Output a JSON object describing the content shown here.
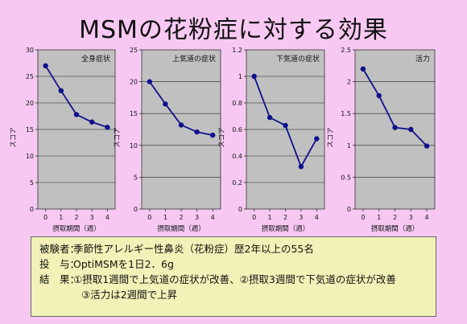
{
  "title": "MSMの花粉症に対する効果",
  "chart_data": [
    {
      "type": "line",
      "title": "全身症状",
      "xlabel": "摂取期間（週）",
      "ylabel": "スコア",
      "x": [
        0,
        1,
        2,
        3,
        4
      ],
      "values": [
        27,
        22.3,
        17.8,
        16.4,
        15.4
      ],
      "ylim": [
        0,
        30
      ],
      "yticks": [
        0,
        5,
        10,
        15,
        20,
        25,
        30
      ],
      "ytick_labels": [
        "0",
        "5",
        "10",
        "15",
        "20",
        "25",
        "30"
      ],
      "grid": true,
      "line_color": "#10108c"
    },
    {
      "type": "line",
      "title": "上気道の症状",
      "xlabel": "摂取期間（週）",
      "ylabel": "スコア",
      "x": [
        0,
        1,
        2,
        3,
        4
      ],
      "values": [
        20,
        16.5,
        13.2,
        12.1,
        11.6
      ],
      "ylim": [
        0,
        25
      ],
      "yticks": [
        0,
        5,
        10,
        15,
        20,
        25
      ],
      "ytick_labels": [
        "0",
        "5",
        "10",
        "15",
        "20",
        "25"
      ],
      "grid": true,
      "line_color": "#10108c"
    },
    {
      "type": "line",
      "title": "下気道の症状",
      "xlabel": "摂取期間（週）",
      "ylabel": "スコア",
      "x": [
        0,
        1,
        2,
        3,
        4
      ],
      "values": [
        1.0,
        0.69,
        0.63,
        0.32,
        0.53
      ],
      "ylim": [
        0,
        1.2
      ],
      "yticks": [
        0,
        0.2,
        0.4,
        0.6,
        0.8,
        1,
        1.2
      ],
      "ytick_labels": [
        "0",
        "0.2",
        "0.4",
        "0.6",
        "0.8",
        "1",
        "1.2"
      ],
      "grid": true,
      "line_color": "#10108c"
    },
    {
      "type": "line",
      "title": "活力",
      "xlabel": "摂取期間（週）",
      "ylabel": "スコア",
      "x": [
        0,
        1,
        2,
        3,
        4
      ],
      "values": [
        2.2,
        1.78,
        1.28,
        1.25,
        0.99
      ],
      "ylim": [
        0,
        2.5
      ],
      "yticks": [
        0,
        0.5,
        1,
        1.5,
        2,
        2.5
      ],
      "ytick_labels": [
        "0",
        "0.5",
        "1",
        "1.5",
        "2",
        "2.5"
      ],
      "grid": true,
      "line_color": "#10108c"
    }
  ],
  "summary": {
    "subject_label": "被験者：",
    "subject_text": "季節性アレルギー性鼻炎（花粉症）歴2年以上の55名",
    "dose_label": "投　与：",
    "dose_text": "OptiMSMを1日2．6g",
    "result_label": "結　果：",
    "result_line1": "①摂取1週間で上気道の症状が改善、②摂取3週間で下気道の症状が改善",
    "result_line2": "③活力は2週間で上昇"
  }
}
